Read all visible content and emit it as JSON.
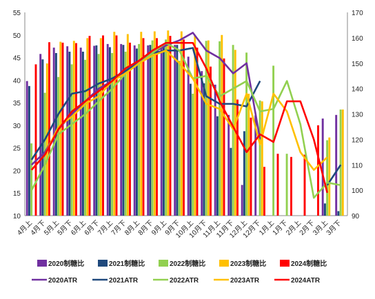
{
  "chart_data": {
    "type": "bar",
    "categories": [
      "4月上",
      "4月下",
      "5月上",
      "5月下",
      "6月上",
      "6月下",
      "7月上",
      "7月下",
      "8月上",
      "8月下",
      "9月上",
      "9月下",
      "10月上",
      "10月下",
      "11月上",
      "11月下",
      "12月上",
      "12月下",
      "1月上",
      "1月下",
      "2月上",
      "2月下",
      "3月上",
      "3月下"
    ],
    "y_left": {
      "min": 10,
      "max": 55,
      "ticks": [
        10,
        15,
        20,
        25,
        30,
        35,
        40,
        45,
        50,
        55
      ]
    },
    "y_right": {
      "min": 90,
      "max": 170,
      "ticks": [
        90,
        100,
        110,
        120,
        130,
        140,
        150,
        160,
        170
      ]
    },
    "series": [
      {
        "name": "2020制糖比",
        "kind": "bar",
        "axis": "left",
        "color": "#7030a0",
        "values": [
          39.8,
          45.8,
          47.2,
          47.5,
          47.2,
          47.6,
          48.0,
          48.0,
          47.7,
          47.7,
          47.8,
          47.8,
          45.2,
          42.0,
          39.0,
          32.3,
          16.8,
          32.2,
          null,
          null,
          null,
          null,
          31.5,
          32.3
        ]
      },
      {
        "name": "2021制糖比",
        "kind": "bar",
        "axis": "left",
        "color": "#1f497d",
        "values": [
          38.7,
          44.6,
          46.0,
          46.3,
          46.3,
          47.7,
          47.3,
          47.8,
          47.0,
          47.8,
          47.3,
          47.8,
          39.2,
          39.3,
          32.0,
          25.0,
          28.7,
          null,
          null,
          null,
          null,
          null,
          12.7,
          11.0
        ]
      },
      {
        "name": "2022制糖比",
        "kind": "bar",
        "axis": "left",
        "color": "#92d050",
        "values": [
          26.0,
          37.2,
          40.7,
          43.5,
          44.5,
          45.8,
          46.0,
          46.3,
          48.0,
          48.8,
          49.0,
          44.3,
          37.0,
          48.7,
          48.6,
          47.8,
          46.1,
          35.5,
          43.2,
          23.7,
          null,
          null,
          26.7,
          33.5
        ]
      },
      {
        "name": "2023制糖比",
        "kind": "bar",
        "axis": "left",
        "color": "#ffc000",
        "values": [
          null,
          43.7,
          48.5,
          48.7,
          49.3,
          49.3,
          50.7,
          50.2,
          50.7,
          50.8,
          51.0,
          50.8,
          49.8,
          48.8,
          50.0,
          46.7,
          37.0,
          35.3,
          null,
          null,
          null,
          null,
          27.3,
          33.5
        ]
      },
      {
        "name": "2024制糖比",
        "kind": "bar",
        "axis": "left",
        "color": "#ff0000",
        "values": [
          43.5,
          48.4,
          48.3,
          48.2,
          49.8,
          49.9,
          49.9,
          48.3,
          49.3,
          49.3,
          49.8,
          49.0,
          47.2,
          43.0,
          44.8,
          35.7,
          31.7,
          20.8,
          23.7,
          23.0,
          23.5,
          30.0,
          null,
          null
        ]
      },
      {
        "name": "2020ATR",
        "kind": "line",
        "axis": "right",
        "color": "#7030a0",
        "values": [
          110,
          115,
          124,
          130,
          135,
          140,
          143,
          147,
          151,
          154,
          157,
          159,
          162,
          155,
          152,
          146,
          150,
          120,
          null,
          null,
          null,
          null,
          null,
          null
        ]
      },
      {
        "name": "2021ATR",
        "kind": "line",
        "axis": "right",
        "color": "#1f497d",
        "values": [
          112,
          120,
          130,
          138,
          139,
          142,
          144,
          147,
          150,
          154,
          155,
          155,
          156,
          137,
          134,
          134,
          133,
          143,
          null,
          null,
          null,
          null,
          102,
          110
        ]
      },
      {
        "name": "2022ATR",
        "kind": "line",
        "axis": "right",
        "color": "#92d050",
        "values": [
          100,
          110,
          122,
          126,
          130,
          135,
          140,
          146,
          150,
          154,
          158,
          155,
          144,
          145,
          137,
          140,
          143,
          131,
          132,
          143,
          126,
          97,
          103,
          102
        ]
      },
      {
        "name": "2023ATR",
        "kind": "line",
        "axis": "right",
        "color": "#ffc000",
        "values": [
          108,
          114,
          125,
          129,
          134,
          137,
          143,
          146,
          150,
          153,
          155,
          150,
          144,
          134,
          132,
          124,
          138,
          118,
          138,
          131,
          115,
          108,
          113,
          null
        ]
      },
      {
        "name": "2024ATR",
        "kind": "line",
        "axis": "right",
        "color": "#ff0000",
        "values": [
          108,
          114,
          124,
          131,
          135,
          139,
          143,
          148,
          151,
          155,
          158,
          158,
          158,
          148,
          135,
          125,
          115,
          122,
          119,
          135,
          135,
          120,
          99,
          null
        ]
      }
    ]
  }
}
